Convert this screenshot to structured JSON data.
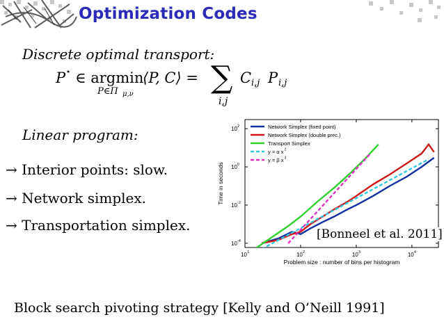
{
  "slide": {
    "title": "Optimization Codes",
    "heading1": "Discrete optimal transport:",
    "formula": {
      "lhs": "P",
      "star": "⋆",
      "in_argmin": "∈ argmin",
      "under_argmin": "P∈Π",
      "under_sub": "μ,ν",
      "inner": "⟨P, C⟩ =",
      "sum": "∑",
      "sum_index": "i,j",
      "term": "C",
      "term_sub": "i,j",
      "term2": "P",
      "term2_sub": "i,j"
    },
    "heading2": "Linear program:",
    "bullets": [
      {
        "arrow": "→",
        "text": "Interior points: slow."
      },
      {
        "arrow": "→",
        "text": "Network simplex."
      },
      {
        "arrow": "→",
        "text": "Transportation simplex."
      }
    ],
    "citation": "[Bonneel et al. 2011]",
    "footer": "Block search pivoting strategy [Kelly and O’Neill 1991]"
  },
  "chart_data": {
    "type": "line",
    "xscale": "log",
    "yscale": "log",
    "xlabel": "Problem size : number of bins per histogram",
    "ylabel": "Time in seconds",
    "xlim": [
      10,
      30000
    ],
    "ylim": [
      6e-05,
      300
    ],
    "xticks": [
      {
        "value": 10,
        "base": "10",
        "exp": "1"
      },
      {
        "value": 100,
        "base": "10",
        "exp": "2"
      },
      {
        "value": 1000,
        "base": "10",
        "exp": "3"
      },
      {
        "value": 10000,
        "base": "10",
        "exp": "4"
      }
    ],
    "yticks": [
      {
        "value": 0.0001,
        "base": "10",
        "exp": "-4"
      },
      {
        "value": 0.01,
        "base": "10",
        "exp": "-2"
      },
      {
        "value": 1,
        "base": "10",
        "exp": "0"
      },
      {
        "value": 100,
        "base": "10",
        "exp": "2"
      }
    ],
    "legend_position": "top-left",
    "series": [
      {
        "name": "Network Simplex (fixed point)",
        "color": "#1030a0",
        "style": "solid",
        "x": [
          20,
          40,
          70,
          100,
          150,
          250,
          400,
          700,
          1000,
          2000,
          4000,
          8000,
          15000,
          25000
        ],
        "y": [
          0.0001,
          0.00018,
          0.0004,
          0.0003,
          0.0006,
          0.0013,
          0.0025,
          0.006,
          0.01,
          0.03,
          0.1,
          0.3,
          1,
          3
        ]
      },
      {
        "name": "Network Simplex (double prec.)",
        "color": "#d01818",
        "style": "solid",
        "x": [
          20,
          40,
          70,
          100,
          150,
          250,
          400,
          700,
          1000,
          2000,
          4000,
          8000,
          15000,
          20000,
          25000
        ],
        "y": [
          0.0001,
          0.00015,
          0.0003,
          0.0004,
          0.001,
          0.0025,
          0.006,
          0.015,
          0.03,
          0.12,
          0.4,
          1.5,
          5,
          15,
          6
        ]
      },
      {
        "name": "Transport Simplex",
        "color": "#30d030",
        "style": "solid",
        "x": [
          15,
          30,
          60,
          100,
          200,
          400,
          800,
          1500,
          2500
        ],
        "y": [
          5e-05,
          0.0002,
          0.0008,
          0.0025,
          0.015,
          0.08,
          0.5,
          3,
          15
        ]
      },
      {
        "name": "y = α x",
        "exp": "2",
        "color": "#30c8e0",
        "style": "dashed",
        "x": [
          20,
          20000
        ],
        "y": [
          5e-05,
          2.5
        ]
      },
      {
        "name": "y = β x",
        "exp": "3",
        "color": "#e030c0",
        "style": "dashed",
        "x": [
          60,
          1800
        ],
        "y": [
          0.0001,
          5
        ]
      }
    ]
  }
}
